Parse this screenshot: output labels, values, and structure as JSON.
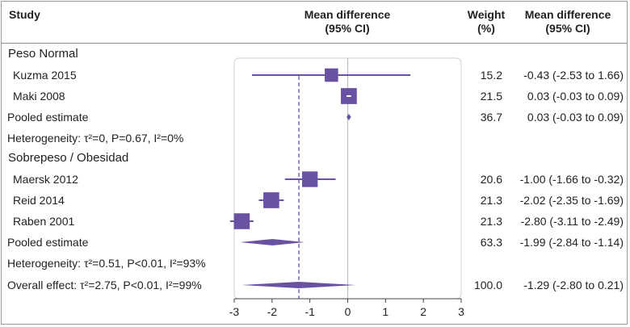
{
  "header": {
    "study": "Study",
    "md_line1": "Mean difference",
    "md_line2": "(95% CI)",
    "weight_line1": "Weight",
    "weight_line2": "(%)",
    "ci_line1": "Mean difference",
    "ci_line2": "(95% CI)"
  },
  "colors": {
    "mark": "#6a52a3",
    "axis": "#444444",
    "frame": "#9a9a9a"
  },
  "chart_data": {
    "type": "forest",
    "xlim": [
      -3,
      3
    ],
    "xticks": [
      "-3",
      "-2",
      "-1",
      "0",
      "1",
      "2",
      "3"
    ],
    "overall_line": -1.29,
    "rows": [
      {
        "kind": "subgroup",
        "label": "Peso Normal"
      },
      {
        "kind": "study",
        "label": "Kuzma 2015",
        "est": -0.43,
        "lo": -2.53,
        "hi": 1.66,
        "weight": 15.2,
        "weight_text": "15.2",
        "ci_text": "-0.43 (-2.53 to 1.66)"
      },
      {
        "kind": "study",
        "label": "Maki 2008",
        "est": 0.03,
        "lo": -0.03,
        "hi": 0.09,
        "weight": 21.5,
        "weight_text": "21.5",
        "ci_text": "0.03 (-0.03 to 0.09)"
      },
      {
        "kind": "pooled",
        "label": "Pooled estimate",
        "est": 0.03,
        "lo": -0.03,
        "hi": 0.09,
        "weight_text": "36.7",
        "ci_text": "0.03 (-0.03 to 0.09)"
      },
      {
        "kind": "het",
        "label": "Heterogeneity: τ²=0, P=0.67, I²=0%"
      },
      {
        "kind": "subgroup",
        "label": "Sobrepeso / Obesidad"
      },
      {
        "kind": "study",
        "label": "Maersk 2012",
        "est": -1.0,
        "lo": -1.66,
        "hi": -0.32,
        "weight": 20.6,
        "weight_text": "20.6",
        "ci_text": "-1.00 (-1.66 to -0.32)"
      },
      {
        "kind": "study",
        "label": "Reid 2014",
        "est": -2.02,
        "lo": -2.35,
        "hi": -1.69,
        "weight": 21.3,
        "weight_text": "21.3",
        "ci_text": "-2.02 (-2.35 to -1.69)"
      },
      {
        "kind": "study",
        "label": "Raben 2001",
        "est": -2.8,
        "lo": -3.11,
        "hi": -2.49,
        "weight": 21.3,
        "weight_text": "21.3",
        "ci_text": "-2.80 (-3.11 to -2.49)"
      },
      {
        "kind": "pooled",
        "label": "Pooled estimate",
        "est": -1.99,
        "lo": -2.84,
        "hi": -1.14,
        "weight_text": "63.3",
        "ci_text": "-1.99 (-2.84 to -1.14)"
      },
      {
        "kind": "het",
        "label": "Heterogeneity: τ²=0.51, P<0.01, I²=93%"
      },
      {
        "kind": "pooled",
        "label": "Overall effect: τ²=2.75, P<0.01, I²=99%",
        "est": -1.29,
        "lo": -2.8,
        "hi": 0.21,
        "weight_text": "100.0",
        "ci_text": "-1.29 (-2.80 to 0.21)"
      }
    ]
  }
}
